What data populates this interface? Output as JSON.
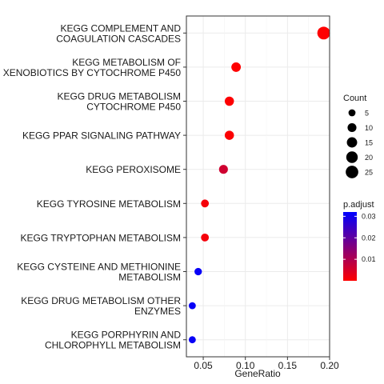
{
  "chart_data": {
    "type": "scatter",
    "title": "",
    "xlabel": "GeneRatio",
    "ylabel": "",
    "xlim": [
      0.03,
      0.2
    ],
    "x_ticks": [
      0.05,
      0.1,
      0.15,
      0.2
    ],
    "x_tick_labels": [
      "0.05",
      "0.10",
      "0.15",
      "0.20"
    ],
    "grid": true,
    "categories": [
      [
        "KEGG COMPLEMENT AND",
        "COAGULATION CASCADES"
      ],
      [
        "KEGG METABOLISM OF",
        "XENOBIOTICS BY CYTOCHROME P450"
      ],
      [
        "KEGG DRUG METABOLISM",
        "CYTOCHROME P450"
      ],
      [
        "KEGG PPAR SIGNALING PATHWAY"
      ],
      [
        "KEGG PEROXISOME"
      ],
      [
        "KEGG TYROSINE METABOLISM"
      ],
      [
        "KEGG TRYPTOPHAN METABOLISM"
      ],
      [
        "KEGG CYSTEINE AND METHIONINE",
        "METABOLISM"
      ],
      [
        "KEGG DRUG METABOLISM OTHER",
        "ENZYMES"
      ],
      [
        "KEGG PORPHYRIN AND",
        "CHLOROPHYLL METABOLISM"
      ]
    ],
    "points": [
      {
        "gene_ratio": 0.193,
        "count": 26,
        "p_adjust": 0.0001
      },
      {
        "gene_ratio": 0.089,
        "count": 12,
        "p_adjust": 0.0001
      },
      {
        "gene_ratio": 0.081,
        "count": 11,
        "p_adjust": 0.0002
      },
      {
        "gene_ratio": 0.081,
        "count": 11,
        "p_adjust": 0.0004
      },
      {
        "gene_ratio": 0.074,
        "count": 10,
        "p_adjust": 0.006
      },
      {
        "gene_ratio": 0.052,
        "count": 7,
        "p_adjust": 0.0012
      },
      {
        "gene_ratio": 0.052,
        "count": 7,
        "p_adjust": 0.0012
      },
      {
        "gene_ratio": 0.044,
        "count": 6,
        "p_adjust": 0.031
      },
      {
        "gene_ratio": 0.037,
        "count": 5,
        "p_adjust": 0.031
      },
      {
        "gene_ratio": 0.037,
        "count": 5,
        "p_adjust": 0.031
      }
    ],
    "size_legend": {
      "title": "Count",
      "values": [
        5,
        10,
        15,
        20,
        25
      ],
      "labels": [
        "5",
        "10",
        "15",
        "20",
        "25"
      ]
    },
    "color_legend": {
      "title": "p.adjust",
      "range": [
        0.0,
        0.032
      ],
      "ticks": [
        0.03,
        0.02,
        0.01
      ],
      "tick_labels": [
        "0.03",
        "0.02",
        "0.01"
      ],
      "low_color": "#FF0000",
      "high_color": "#0000FF"
    }
  }
}
